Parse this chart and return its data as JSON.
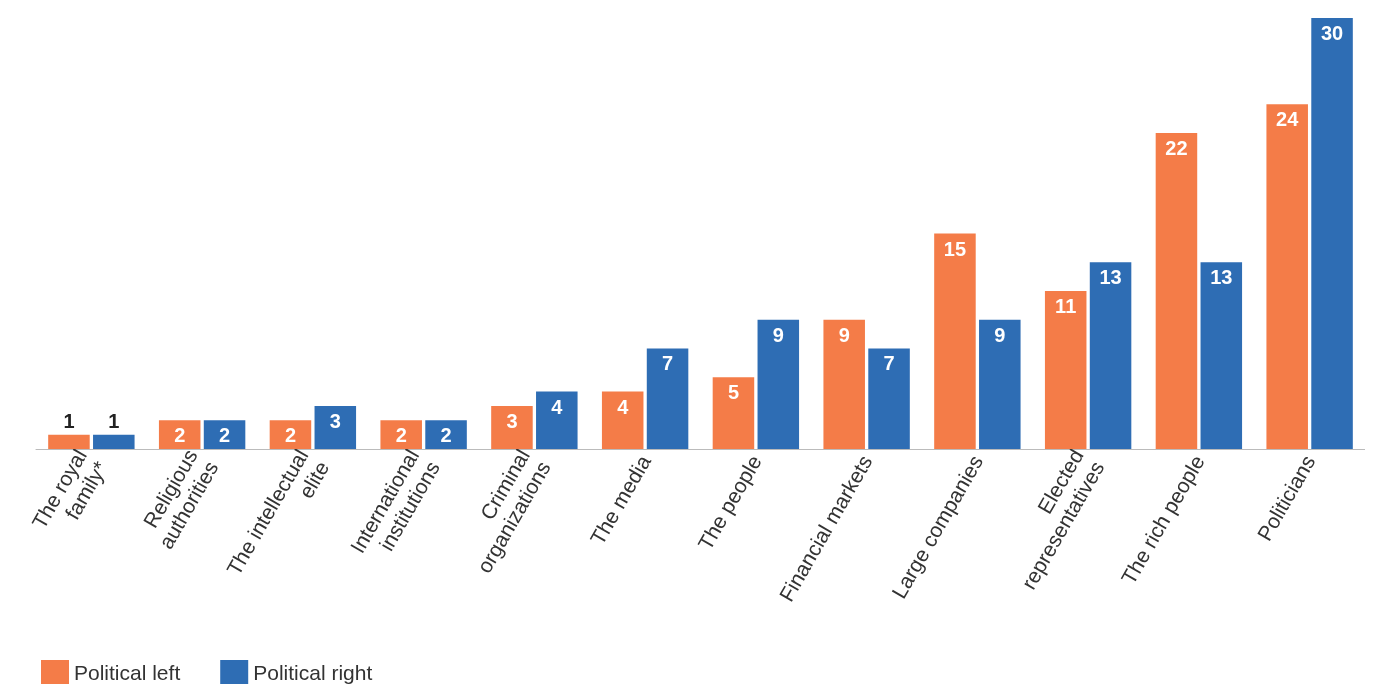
{
  "chart_data": {
    "type": "bar",
    "categories": [
      "The royal\nfamily*",
      "Religious\nauthorities",
      "The intellectual\nelite",
      "International\ninstitutions",
      "Criminal\norganizations",
      "The media",
      "The people",
      "Financial markets",
      "Large companies",
      "Elected\nrepresentatives",
      "The rich people",
      "Politicians"
    ],
    "series": [
      {
        "name": "Political left",
        "color": "#f47c48",
        "values": [
          1,
          2,
          2,
          2,
          3,
          4,
          5,
          9,
          15,
          11,
          22,
          24
        ]
      },
      {
        "name": "Political right",
        "color": "#2e6db4",
        "values": [
          1,
          2,
          3,
          2,
          4,
          7,
          9,
          7,
          9,
          13,
          13,
          30
        ]
      }
    ],
    "data_labels": true,
    "legend": "bottom left",
    "grid": false
  }
}
